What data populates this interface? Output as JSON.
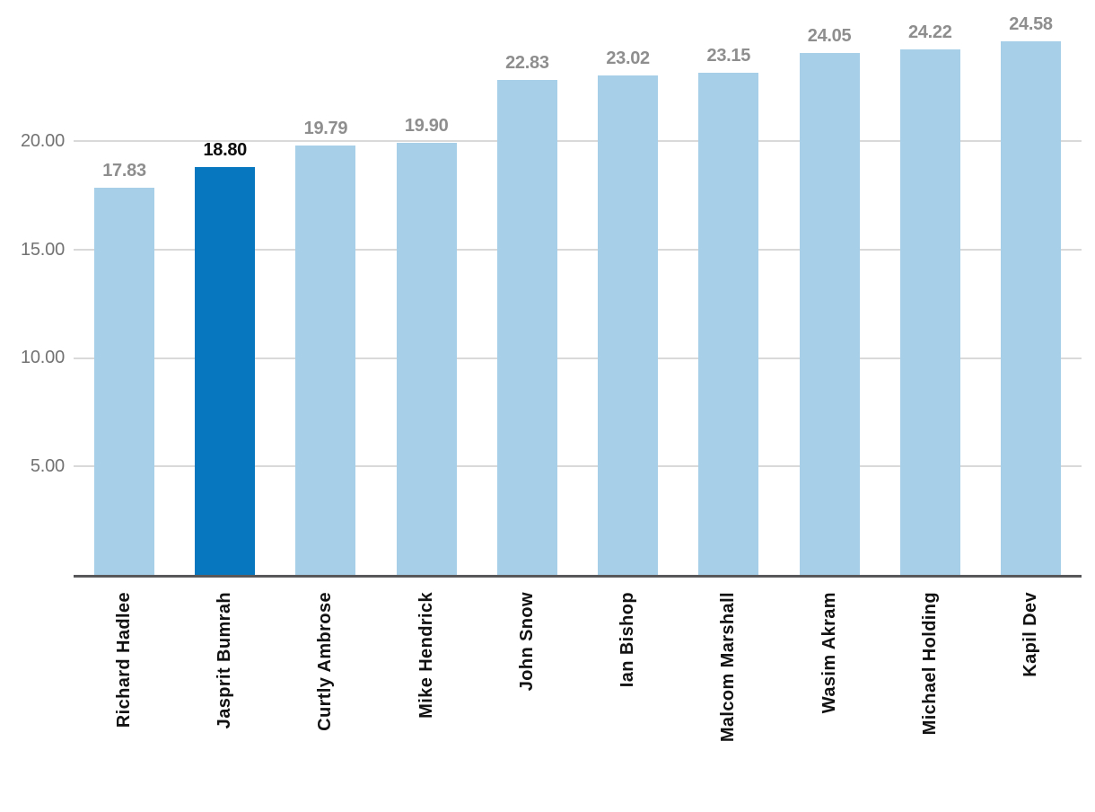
{
  "chart_data": {
    "type": "bar",
    "categories": [
      "Richard Hadlee",
      "Jasprit Bumrah",
      "Curtly Ambrose",
      "Mike Hendrick",
      "John Snow",
      "Ian Bishop",
      "Malcom Marshall",
      "Wasim Akram",
      "Michael Holding",
      "Kapil Dev"
    ],
    "values": [
      17.83,
      18.8,
      19.79,
      19.9,
      22.83,
      23.02,
      23.15,
      24.05,
      24.22,
      24.58
    ],
    "value_labels": [
      "17.83",
      "18.80",
      "19.79",
      "19.90",
      "22.83",
      "23.02",
      "23.15",
      "24.05",
      "24.22",
      "24.58"
    ],
    "highlight_index": 1,
    "highlight_category": "Jasprit Bumrah",
    "y_ticks": [
      5,
      10,
      15,
      20
    ],
    "y_tick_labels": [
      "5.00",
      "10.00",
      "15.00",
      "20.00"
    ],
    "ylim": [
      0,
      26.5
    ],
    "grid": true,
    "legend": "none",
    "colors": {
      "bar": "#A7CFE8",
      "bar_highlight": "#0778BF",
      "gridline": "#D9D9D9",
      "axis_line": "#58585A",
      "value_label": "#8E8E8E",
      "value_label_highlight": "#0B0B0B",
      "y_tick_label": "#737373",
      "x_label": "#121212",
      "background": "#FFFFFF"
    }
  }
}
